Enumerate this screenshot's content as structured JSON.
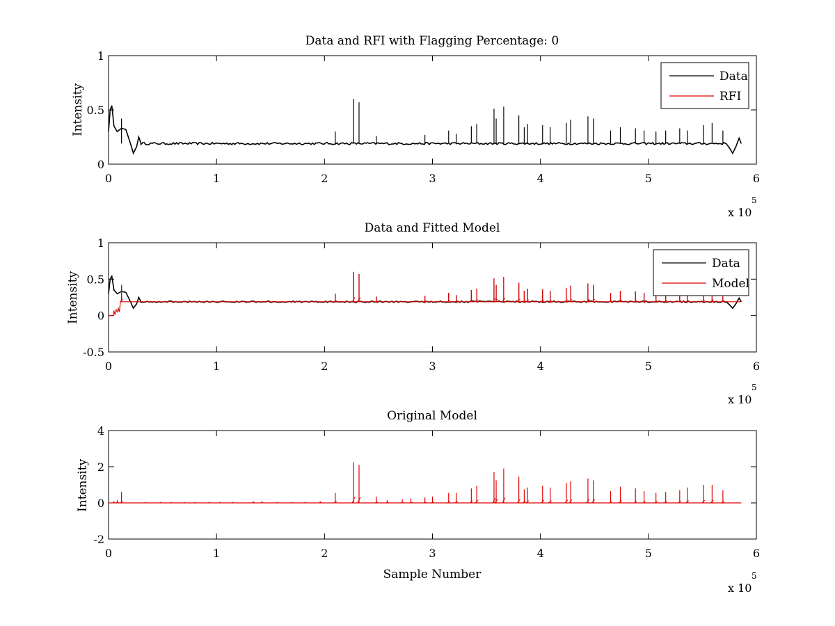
{
  "figure": {
    "background": "#ffffff"
  },
  "chart_data": [
    {
      "type": "line",
      "title": "Data and RFI with Flagging Percentage: 0",
      "xlabel": "",
      "ylabel": "Intensity",
      "xlim": [
        0,
        600000
      ],
      "ylim": [
        0,
        1
      ],
      "x_ticks": [
        0,
        1,
        2,
        3,
        4,
        5,
        6
      ],
      "x_exponent_label": "x 10",
      "x_exponent_power": "5",
      "y_ticks": [
        "0",
        "0.5",
        "1"
      ],
      "y_tick_values": [
        0,
        0.5,
        1
      ],
      "legend": {
        "position": "top-right",
        "entries": [
          {
            "name": "Data",
            "color": "#000000"
          },
          {
            "name": "RFI",
            "color": "#e00000"
          }
        ]
      },
      "series": [
        {
          "name": "Data",
          "color": "#000000",
          "kind": "data",
          "baseline": 0.19,
          "noise": 0.01,
          "start_shape": [
            [
              0,
              0.3
            ],
            [
              1500,
              0.5
            ],
            [
              3000,
              0.54
            ],
            [
              5000,
              0.35
            ],
            [
              8000,
              0.3
            ],
            [
              12000,
              0.33
            ],
            [
              16000,
              0.32
            ],
            [
              20000,
              0.2
            ],
            [
              23000,
              0.1
            ],
            [
              26000,
              0.16
            ],
            [
              28000,
              0.25
            ],
            [
              30000,
              0.19
            ]
          ],
          "end_shape": [
            [
              572000,
              0.19
            ],
            [
              575000,
              0.15
            ],
            [
              578000,
              0.1
            ],
            [
              581000,
              0.16
            ],
            [
              584000,
              0.24
            ],
            [
              586000,
              0.19
            ]
          ],
          "x_end": 586000
        },
        {
          "name": "RFI",
          "color": "#e00000",
          "kind": "empty"
        }
      ],
      "spikes": [
        [
          12000,
          0.42
        ],
        [
          210000,
          0.3
        ],
        [
          227000,
          0.6
        ],
        [
          232000,
          0.57
        ],
        [
          248000,
          0.26
        ],
        [
          293000,
          0.27
        ],
        [
          315000,
          0.31
        ],
        [
          322000,
          0.28
        ],
        [
          336000,
          0.35
        ],
        [
          341000,
          0.37
        ],
        [
          357000,
          0.51
        ],
        [
          359000,
          0.42
        ],
        [
          366000,
          0.53
        ],
        [
          380000,
          0.45
        ],
        [
          385000,
          0.34
        ],
        [
          388000,
          0.37
        ],
        [
          402000,
          0.36
        ],
        [
          409000,
          0.34
        ],
        [
          424000,
          0.38
        ],
        [
          428000,
          0.41
        ],
        [
          444000,
          0.44
        ],
        [
          449000,
          0.42
        ],
        [
          465000,
          0.31
        ],
        [
          474000,
          0.34
        ],
        [
          488000,
          0.33
        ],
        [
          496000,
          0.31
        ],
        [
          507000,
          0.3
        ],
        [
          516000,
          0.31
        ],
        [
          529000,
          0.33
        ],
        [
          536000,
          0.31
        ],
        [
          551000,
          0.36
        ],
        [
          559000,
          0.38
        ],
        [
          569000,
          0.31
        ]
      ]
    },
    {
      "type": "line",
      "title": "Data and Fitted Model",
      "xlabel": "",
      "ylabel": "Intensity",
      "xlim": [
        0,
        600000
      ],
      "ylim": [
        -0.5,
        1
      ],
      "x_ticks": [
        0,
        1,
        2,
        3,
        4,
        5,
        6
      ],
      "x_exponent_label": "x 10",
      "x_exponent_power": "5",
      "y_ticks": [
        "-0.5",
        "0",
        "0.5",
        "1"
      ],
      "y_tick_values": [
        -0.5,
        0,
        0.5,
        1
      ],
      "legend": {
        "position": "top-right",
        "entries": [
          {
            "name": "Data",
            "color": "#000000"
          },
          {
            "name": "Model",
            "color": "#e00000"
          }
        ]
      },
      "series": [
        {
          "name": "Data",
          "color": "#000000",
          "kind": "data",
          "baseline": 0.19,
          "noise": 0.01,
          "start_shape": [
            [
              0,
              0.3
            ],
            [
              1500,
              0.5
            ],
            [
              3000,
              0.54
            ],
            [
              5000,
              0.35
            ],
            [
              8000,
              0.3
            ],
            [
              12000,
              0.33
            ],
            [
              16000,
              0.32
            ],
            [
              20000,
              0.2
            ],
            [
              23000,
              0.1
            ],
            [
              26000,
              0.16
            ],
            [
              28000,
              0.25
            ],
            [
              30000,
              0.19
            ]
          ],
          "end_shape": [
            [
              572000,
              0.19
            ],
            [
              575000,
              0.15
            ],
            [
              578000,
              0.1
            ],
            [
              581000,
              0.16
            ],
            [
              584000,
              0.24
            ],
            [
              586000,
              0.19
            ]
          ],
          "x_end": 586000
        },
        {
          "name": "Model",
          "color": "#e00000",
          "kind": "model",
          "baseline": 0.19,
          "start_shape": [
            [
              0,
              0
            ],
            [
              4000,
              0
            ],
            [
              5000,
              0.06
            ],
            [
              6000,
              0.01
            ],
            [
              7000,
              0.08
            ],
            [
              8000,
              0.05
            ],
            [
              9000,
              0.1
            ],
            [
              10000,
              0.05
            ],
            [
              11000,
              0.19
            ]
          ],
          "x_end": 586000
        }
      ],
      "spikes": [
        [
          12000,
          0.42
        ],
        [
          210000,
          0.3
        ],
        [
          227000,
          0.6
        ],
        [
          232000,
          0.57
        ],
        [
          248000,
          0.26
        ],
        [
          293000,
          0.27
        ],
        [
          315000,
          0.31
        ],
        [
          322000,
          0.28
        ],
        [
          336000,
          0.35
        ],
        [
          341000,
          0.37
        ],
        [
          357000,
          0.51
        ],
        [
          359000,
          0.42
        ],
        [
          366000,
          0.53
        ],
        [
          380000,
          0.45
        ],
        [
          385000,
          0.34
        ],
        [
          388000,
          0.37
        ],
        [
          402000,
          0.36
        ],
        [
          409000,
          0.34
        ],
        [
          424000,
          0.38
        ],
        [
          428000,
          0.41
        ],
        [
          444000,
          0.44
        ],
        [
          449000,
          0.42
        ],
        [
          465000,
          0.31
        ],
        [
          474000,
          0.34
        ],
        [
          488000,
          0.33
        ],
        [
          496000,
          0.31
        ],
        [
          507000,
          0.3
        ],
        [
          516000,
          0.31
        ],
        [
          529000,
          0.33
        ],
        [
          536000,
          0.31
        ],
        [
          551000,
          0.36
        ],
        [
          559000,
          0.38
        ],
        [
          569000,
          0.31
        ]
      ]
    },
    {
      "type": "line",
      "title": "Original Model",
      "xlabel": "Sample Number",
      "ylabel": "Intensity",
      "xlim": [
        0,
        600000
      ],
      "ylim": [
        -2,
        4
      ],
      "x_ticks": [
        0,
        1,
        2,
        3,
        4,
        5,
        6
      ],
      "x_exponent_label": "x 10",
      "x_exponent_power": "5",
      "y_ticks": [
        "-2",
        "0",
        "2",
        "4"
      ],
      "y_tick_values": [
        -2,
        0,
        2,
        4
      ],
      "series": [
        {
          "name": "",
          "color": "#e00000",
          "kind": "model",
          "baseline": 0,
          "start_shape": [
            [
              0,
              0
            ],
            [
              5000,
              0
            ]
          ],
          "x_end": 586000
        }
      ],
      "spikes": [
        [
          5000,
          0.1
        ],
        [
          8000,
          0.15
        ],
        [
          12000,
          0.6
        ],
        [
          34000,
          0.05
        ],
        [
          48000,
          0.05
        ],
        [
          58000,
          0.05
        ],
        [
          70000,
          0.05
        ],
        [
          80000,
          0.05
        ],
        [
          93000,
          0.05
        ],
        [
          103000,
          0.05
        ],
        [
          115000,
          0.05
        ],
        [
          134000,
          0.1
        ],
        [
          142000,
          0.1
        ],
        [
          156000,
          0.05
        ],
        [
          170000,
          0.05
        ],
        [
          182000,
          0.05
        ],
        [
          196000,
          0.1
        ],
        [
          210000,
          0.55
        ],
        [
          227000,
          2.25
        ],
        [
          232000,
          2.1
        ],
        [
          248000,
          0.35
        ],
        [
          258000,
          0.15
        ],
        [
          272000,
          0.2
        ],
        [
          280000,
          0.25
        ],
        [
          293000,
          0.3
        ],
        [
          300000,
          0.35
        ],
        [
          315000,
          0.55
        ],
        [
          322000,
          0.55
        ],
        [
          336000,
          0.8
        ],
        [
          341000,
          0.95
        ],
        [
          357000,
          1.7
        ],
        [
          359000,
          1.25
        ],
        [
          366000,
          1.9
        ],
        [
          380000,
          1.45
        ],
        [
          385000,
          0.75
        ],
        [
          388000,
          0.85
        ],
        [
          402000,
          0.95
        ],
        [
          409000,
          0.85
        ],
        [
          424000,
          1.1
        ],
        [
          428000,
          1.2
        ],
        [
          444000,
          1.35
        ],
        [
          449000,
          1.25
        ],
        [
          465000,
          0.65
        ],
        [
          474000,
          0.9
        ],
        [
          488000,
          0.8
        ],
        [
          496000,
          0.65
        ],
        [
          507000,
          0.55
        ],
        [
          516000,
          0.6
        ],
        [
          529000,
          0.7
        ],
        [
          536000,
          0.85
        ],
        [
          551000,
          1.0
        ],
        [
          559000,
          1.0
        ],
        [
          569000,
          0.7
        ]
      ]
    }
  ]
}
